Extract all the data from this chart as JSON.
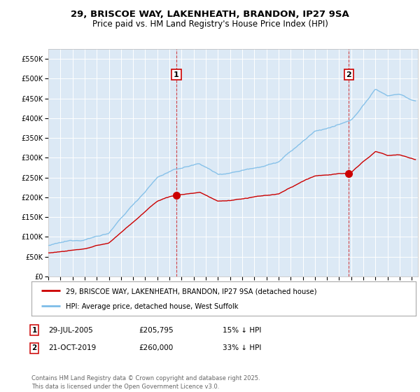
{
  "title_line1": "29, BRISCOE WAY, LAKENHEATH, BRANDON, IP27 9SA",
  "title_line2": "Price paid vs. HM Land Registry's House Price Index (HPI)",
  "bg_color": "#ffffff",
  "plot_bg_color": "#dce9f5",
  "grid_color": "#ffffff",
  "ylim": [
    0,
    575000
  ],
  "yticks": [
    0,
    50000,
    100000,
    150000,
    200000,
    250000,
    300000,
    350000,
    400000,
    450000,
    500000,
    550000
  ],
  "ytick_labels": [
    "£0",
    "£50K",
    "£100K",
    "£150K",
    "£200K",
    "£250K",
    "£300K",
    "£350K",
    "£400K",
    "£450K",
    "£500K",
    "£550K"
  ],
  "xmin": 1995,
  "xmax": 2025.5,
  "hpi_color": "#7dbde8",
  "price_color": "#cc0000",
  "ann1_x": 2005.57,
  "ann1_price": 205795,
  "ann2_x": 2019.8,
  "ann2_price": 260000,
  "legend_line1": "29, BRISCOE WAY, LAKENHEATH, BRANDON, IP27 9SA (detached house)",
  "legend_line2": "HPI: Average price, detached house, West Suffolk",
  "table_rows": [
    {
      "box": "1",
      "date": "29-JUL-2005",
      "price": "£205,795",
      "hpi": "15% ↓ HPI"
    },
    {
      "box": "2",
      "date": "21-OCT-2019",
      "price": "£260,000",
      "hpi": "33% ↓ HPI"
    }
  ],
  "footer": "Contains HM Land Registry data © Crown copyright and database right 2025.\nThis data is licensed under the Open Government Licence v3.0."
}
